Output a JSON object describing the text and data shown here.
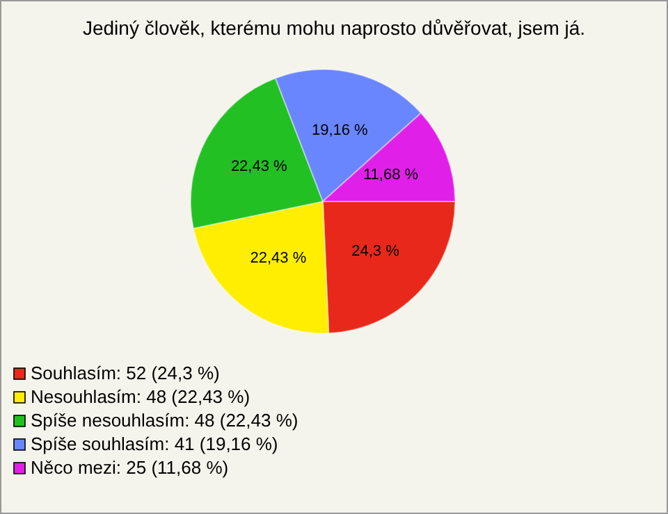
{
  "chart_data": {
    "type": "pie",
    "title": "Jediný člověk, kterému mohu naprosto důvěřovat, jsem já.",
    "categories": [
      "Souhlasím: 52 (24,3 %)",
      "Nesouhlasím: 48 (22,43 %)",
      "Spíše nesouhlasím: 48 (22,43 %)",
      "Spíše souhlasím: 41 (19,16 %)",
      "Něco mezi: 25 (11,68 %)"
    ],
    "values": [
      24.3,
      22.43,
      22.43,
      19.16,
      11.68
    ],
    "value_labels": [
      "24,3 %",
      "22,43 %",
      "22,43 %",
      "19,16 %",
      "11,68 %"
    ],
    "colors": [
      "#e8281a",
      "#ffee00",
      "#22c022",
      "#6a86ff",
      "#e020e8"
    ],
    "legend": "bottom left"
  }
}
